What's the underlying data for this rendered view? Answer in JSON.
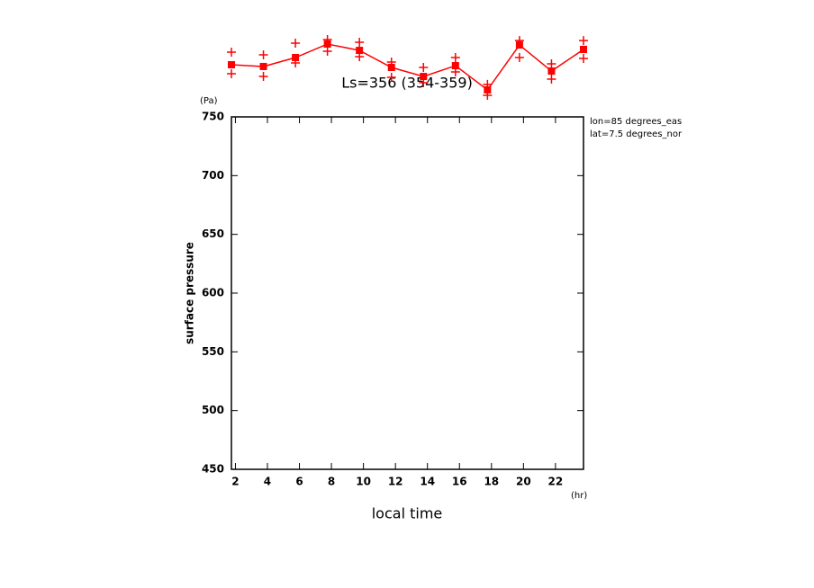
{
  "chart_data": {
    "type": "line",
    "title": "Ls=356 (354-359)",
    "xlabel": "local time",
    "ylabel": "surface pressure",
    "xunit": "(hr)",
    "yunit": "(Pa)",
    "annotations": [
      "lon=85 degrees_eas",
      "lat=7.5 degrees_nor"
    ],
    "x": [
      1.75,
      3.75,
      5.75,
      7.75,
      9.75,
      11.75,
      13.75,
      15.75,
      17.75,
      19.75,
      21.75,
      23.75
    ],
    "series": [
      {
        "color": "#ff0000",
        "marker": "square",
        "line": true,
        "values": [
          794.4,
          792.9,
          800.5,
          812.0,
          806.6,
          792.1,
          784.4,
          793.6,
          773.0,
          811.2,
          789.0,
          807.4
        ]
      },
      {
        "color": "#ff0000",
        "marker": "plus",
        "line": false,
        "values": [
          805.1,
          802.8,
          812.8,
          815.8,
          813.5,
          796.7,
          792.1,
          800.5,
          777.6,
          815.0,
          795.2,
          815.0
        ]
      },
      {
        "color": "#ff0000",
        "marker": "plus",
        "line": false,
        "values": [
          786.7,
          784.4,
          795.9,
          805.9,
          801.3,
          783.7,
          779.1,
          788.3,
          768.4,
          800.5,
          782.1,
          799.7
        ]
      }
    ],
    "xlim": [
      1.75,
      23.75
    ],
    "ylim": [
      450,
      750
    ],
    "xticks": [
      2,
      4,
      6,
      8,
      10,
      12,
      14,
      16,
      18,
      20,
      22
    ],
    "yticks": [
      450,
      500,
      550,
      600,
      650,
      700,
      750
    ],
    "grid": false
  }
}
